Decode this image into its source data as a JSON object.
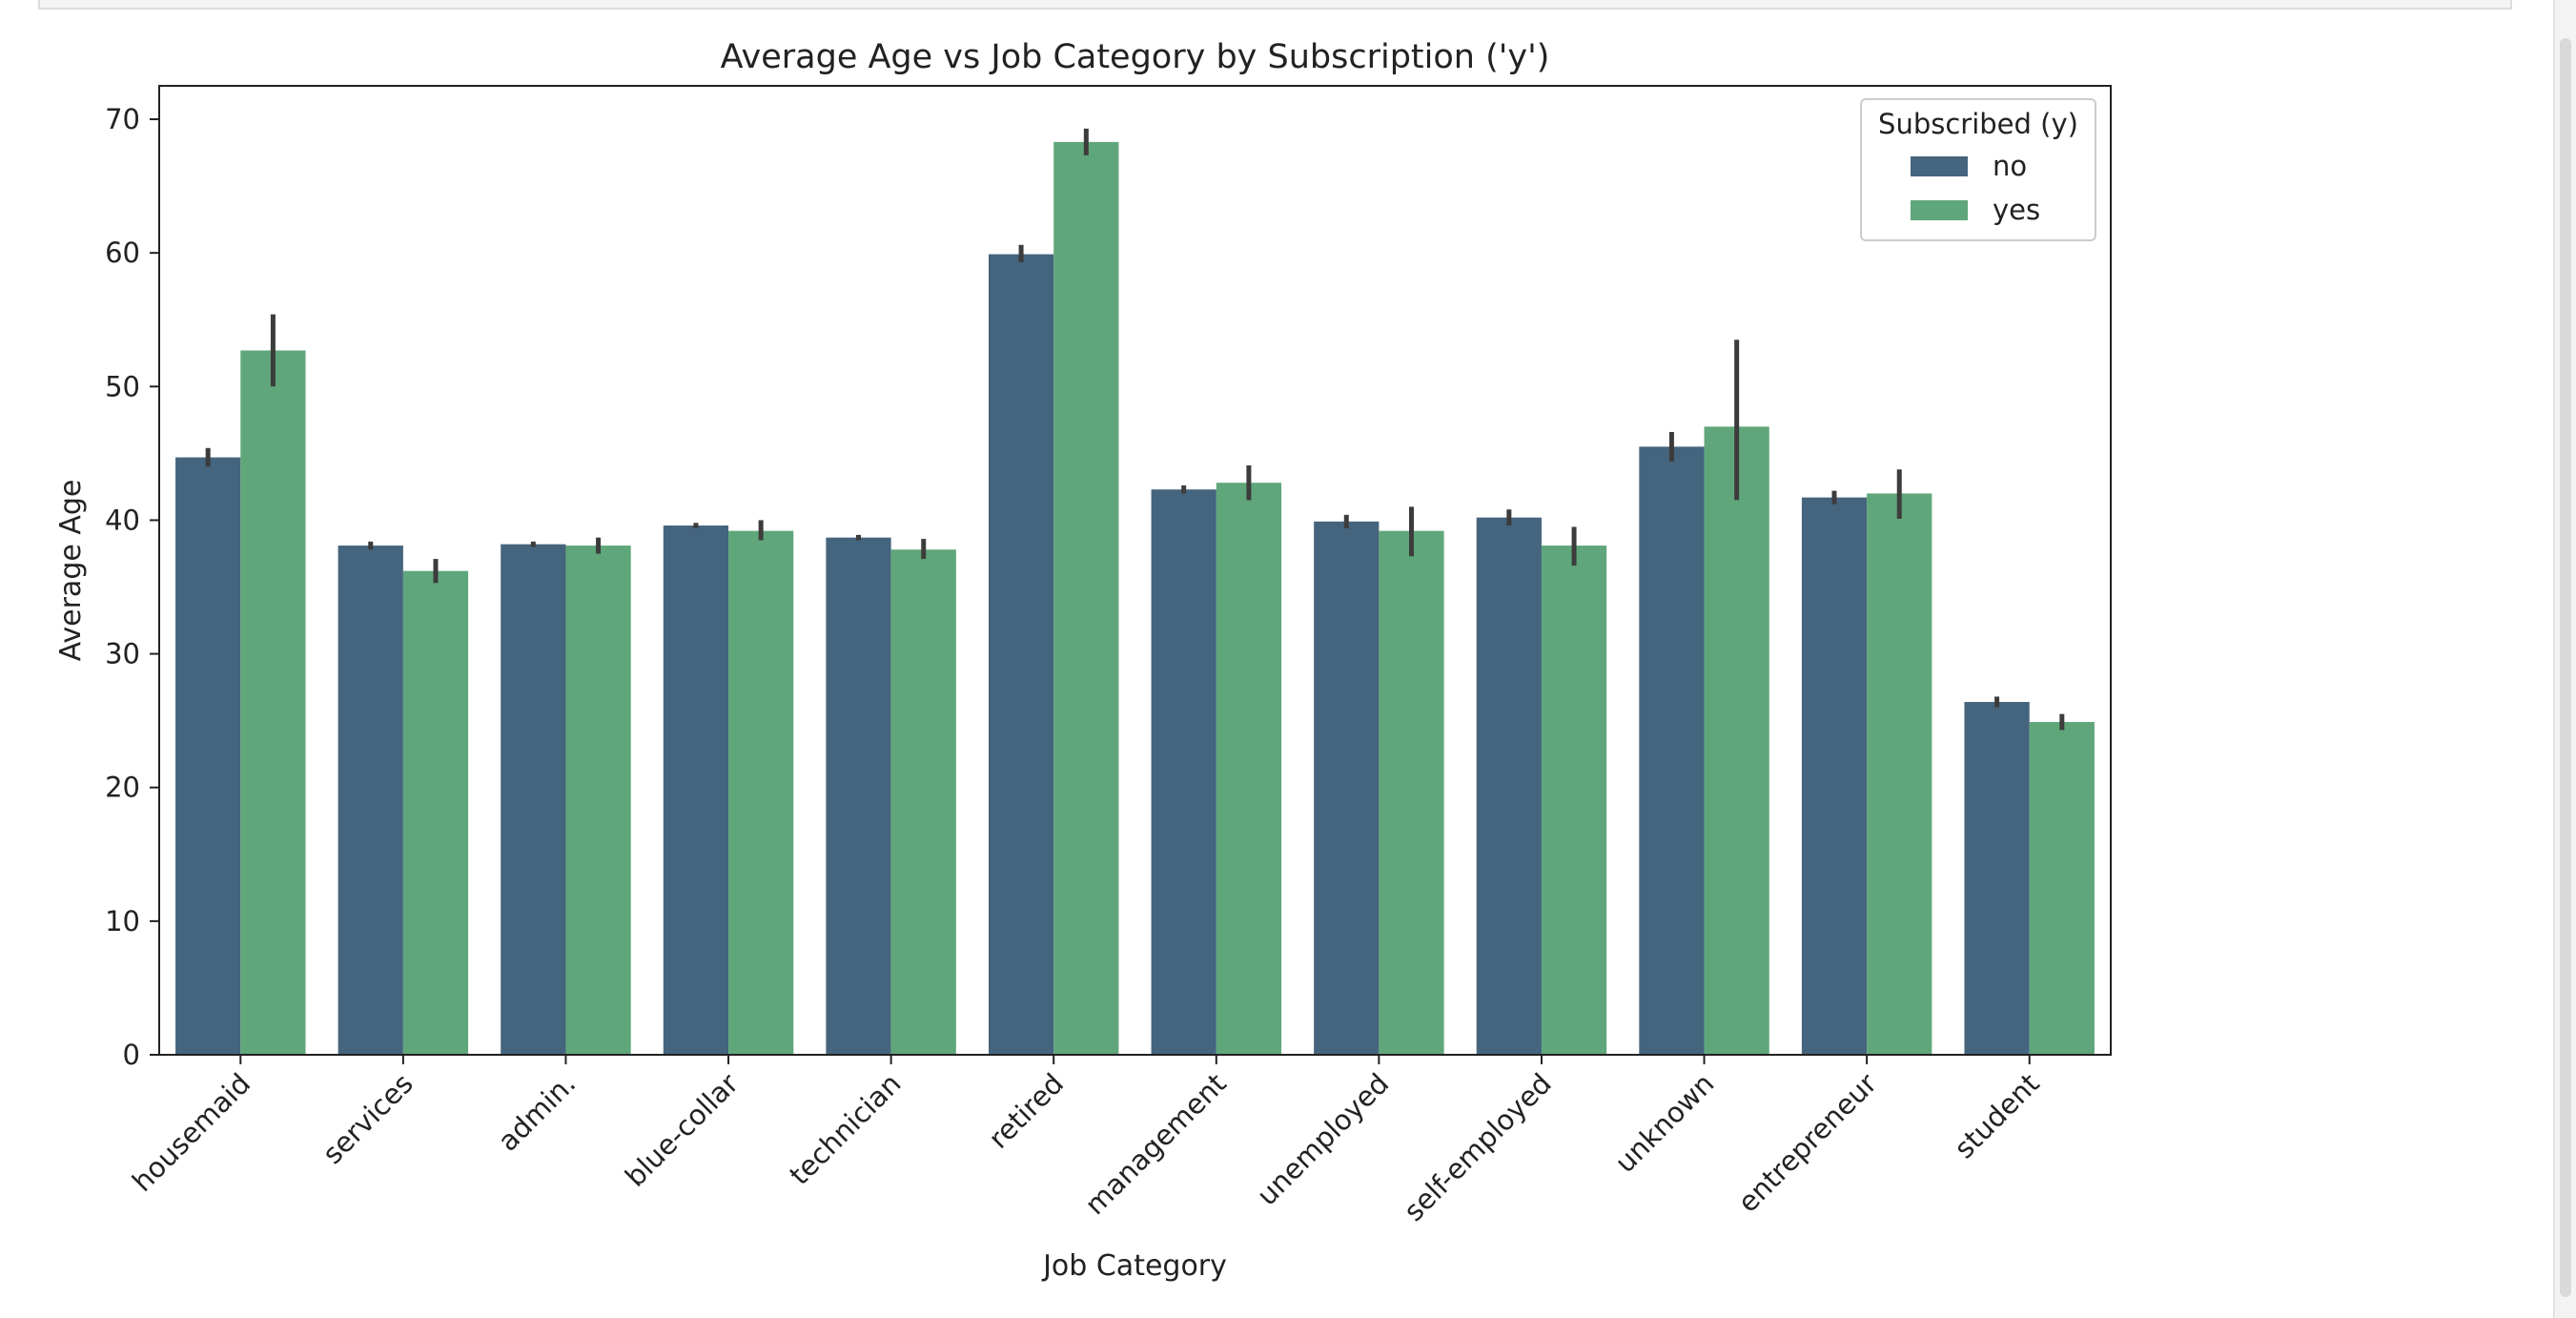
{
  "chart_data": {
    "type": "bar",
    "title": "Average Age vs Job Category by Subscription ('y')",
    "xlabel": "Job Category",
    "ylabel": "Average Age",
    "ylim": [
      0,
      72.5
    ],
    "yticks": [
      0,
      10,
      20,
      30,
      40,
      50,
      60,
      70
    ],
    "categories": [
      "housemaid",
      "services",
      "admin.",
      "blue-collar",
      "technician",
      "retired",
      "management",
      "unemployed",
      "self-employed",
      "unknown",
      "entrepreneur",
      "student"
    ],
    "series": [
      {
        "name": "no",
        "color": "#45647e",
        "values": [
          44.7,
          38.1,
          38.2,
          39.6,
          38.7,
          59.9,
          42.3,
          39.9,
          40.2,
          45.5,
          41.7,
          26.4
        ],
        "ci": [
          [
            44.0,
            45.4
          ],
          [
            37.8,
            38.4
          ],
          [
            38.0,
            38.4
          ],
          [
            39.4,
            39.8
          ],
          [
            38.5,
            38.9
          ],
          [
            59.3,
            60.6
          ],
          [
            42.0,
            42.6
          ],
          [
            39.4,
            40.4
          ],
          [
            39.6,
            40.8
          ],
          [
            44.4,
            46.6
          ],
          [
            41.2,
            42.2
          ],
          [
            26.0,
            26.8
          ]
        ]
      },
      {
        "name": "yes",
        "color": "#60a67b",
        "values": [
          52.7,
          36.2,
          38.1,
          39.2,
          37.8,
          68.3,
          42.8,
          39.2,
          38.1,
          47.0,
          42.0,
          24.9
        ],
        "ci": [
          [
            50.0,
            55.4
          ],
          [
            35.3,
            37.1
          ],
          [
            37.5,
            38.7
          ],
          [
            38.5,
            40.0
          ],
          [
            37.1,
            38.6
          ],
          [
            67.3,
            69.3
          ],
          [
            41.5,
            44.1
          ],
          [
            37.3,
            41.0
          ],
          [
            36.6,
            39.5
          ],
          [
            41.5,
            53.5
          ],
          [
            40.1,
            43.8
          ],
          [
            24.3,
            25.5
          ]
        ]
      }
    ],
    "legend": {
      "title": "Subscribed (y)",
      "position": "top-right"
    },
    "grid": false
  }
}
